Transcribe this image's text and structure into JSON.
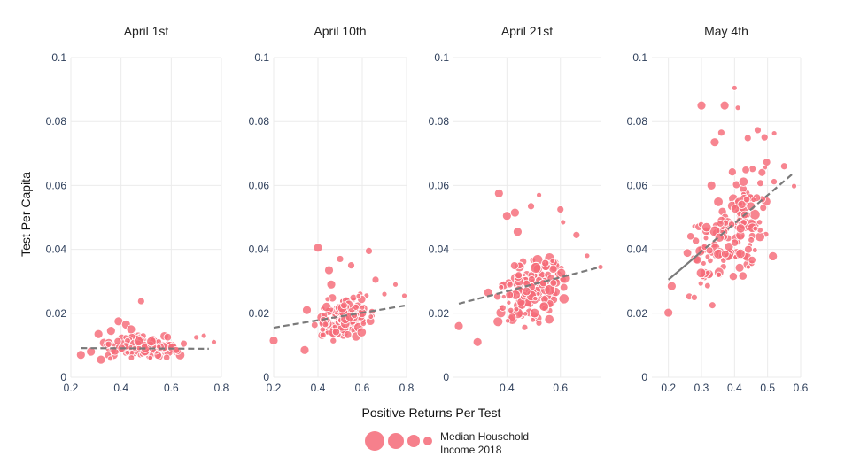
{
  "chart_data": {
    "type": "scatter",
    "y_axis_title": "Test Per Capita",
    "x_axis_title": "Positive Returns Per Test",
    "marker_color": "#f56a78",
    "trend_color": "#7a7a7a",
    "legend": {
      "label_line1": "Median Household",
      "label_line2": "Income 2018",
      "sizes": [
        11,
        9,
        7,
        5
      ]
    },
    "panels": [
      {
        "title": "April 1st",
        "xlim": [
          0.2,
          0.8
        ],
        "ylim": [
          0,
          0.1
        ],
        "xticks": [
          0.2,
          0.4,
          0.6,
          0.8
        ],
        "xtick_labels": [
          "0.2",
          "0.4",
          "0.6",
          "0.8"
        ],
        "yticks": [
          0,
          0.02,
          0.04,
          0.06,
          0.08,
          0.1
        ],
        "ytick_labels": [
          "0",
          "0.02",
          "0.04",
          "0.06",
          "0.08",
          "0.1"
        ],
        "trend": {
          "style": "dashed",
          "x": [
            0.24,
            0.75
          ],
          "y": [
            0.0091,
            0.0089
          ]
        },
        "cluster": {
          "n": 150,
          "seed": 11,
          "xr": [
            0.3,
            0.66
          ],
          "yr": [
            0.005,
            0.014
          ],
          "trend": true,
          "rmin": 2.5,
          "rmax": 5.5
        },
        "points": [
          [
            0.24,
            0.007,
            5
          ],
          [
            0.28,
            0.008,
            5
          ],
          [
            0.31,
            0.0135,
            5
          ],
          [
            0.32,
            0.0055,
            5
          ],
          [
            0.36,
            0.0145,
            5
          ],
          [
            0.39,
            0.0175,
            5
          ],
          [
            0.42,
            0.0165,
            5
          ],
          [
            0.44,
            0.015,
            5
          ],
          [
            0.48,
            0.0238,
            4
          ],
          [
            0.62,
            0.0085,
            4
          ],
          [
            0.65,
            0.0105,
            4
          ],
          [
            0.7,
            0.0125,
            3
          ],
          [
            0.73,
            0.013,
            3
          ],
          [
            0.77,
            0.011,
            3
          ]
        ]
      },
      {
        "title": "April 10th",
        "xlim": [
          0.2,
          0.8
        ],
        "ylim": [
          0,
          0.1
        ],
        "xticks": [
          0.2,
          0.4,
          0.6,
          0.8
        ],
        "xtick_labels": [
          "0.2",
          "0.4",
          "0.6",
          "0.8"
        ],
        "yticks": [
          0,
          0.02,
          0.04,
          0.06,
          0.08,
          0.1
        ],
        "ytick_labels": [
          "0",
          "0.02",
          "0.04",
          "0.06",
          "0.08",
          "0.1"
        ],
        "trend": {
          "style": "dashed",
          "x": [
            0.2,
            0.8
          ],
          "y": [
            0.0155,
            0.0225
          ]
        },
        "cluster": {
          "n": 150,
          "seed": 23,
          "xr": [
            0.36,
            0.68
          ],
          "yr": [
            0.01,
            0.027
          ],
          "trend": true,
          "rmin": 2.5,
          "rmax": 5.5
        },
        "points": [
          [
            0.2,
            0.0115,
            5
          ],
          [
            0.34,
            0.0085,
            5
          ],
          [
            0.35,
            0.021,
            5
          ],
          [
            0.4,
            0.0405,
            5
          ],
          [
            0.45,
            0.0335,
            5
          ],
          [
            0.46,
            0.029,
            5
          ],
          [
            0.5,
            0.037,
            4
          ],
          [
            0.55,
            0.035,
            4
          ],
          [
            0.63,
            0.0395,
            4
          ],
          [
            0.66,
            0.0305,
            4
          ],
          [
            0.7,
            0.026,
            3
          ],
          [
            0.75,
            0.029,
            3
          ],
          [
            0.79,
            0.0255,
            3
          ]
        ]
      },
      {
        "title": "April 21st",
        "xlim": [
          0.2,
          0.75
        ],
        "ylim": [
          0,
          0.1
        ],
        "xticks": [
          0.4,
          0.6
        ],
        "xtick_labels": [
          "0.4",
          "0.6"
        ],
        "yticks": [
          0,
          0.02,
          0.04,
          0.06,
          0.08,
          0.1
        ],
        "ytick_labels": [
          "0",
          "0.02",
          "0.04",
          "0.06",
          "0.08",
          "0.1"
        ],
        "trend": {
          "style": "dashed",
          "x": [
            0.22,
            0.75
          ],
          "y": [
            0.023,
            0.0345
          ]
        },
        "cluster": {
          "n": 150,
          "seed": 37,
          "xr": [
            0.33,
            0.66
          ],
          "yr": [
            0.014,
            0.04
          ],
          "trend": true,
          "rmin": 2.5,
          "rmax": 6
        },
        "points": [
          [
            0.22,
            0.016,
            5
          ],
          [
            0.29,
            0.011,
            5
          ],
          [
            0.33,
            0.0265,
            5
          ],
          [
            0.37,
            0.0575,
            5
          ],
          [
            0.4,
            0.0505,
            5
          ],
          [
            0.43,
            0.0515,
            5
          ],
          [
            0.44,
            0.0455,
            5
          ],
          [
            0.49,
            0.0535,
            4
          ],
          [
            0.52,
            0.057,
            3
          ],
          [
            0.6,
            0.0525,
            4
          ],
          [
            0.61,
            0.0485,
            3
          ],
          [
            0.66,
            0.0445,
            4
          ],
          [
            0.7,
            0.038,
            3
          ],
          [
            0.75,
            0.0345,
            3
          ]
        ]
      },
      {
        "title": "May 4th",
        "xlim": [
          0.15,
          0.6
        ],
        "ylim": [
          0,
          0.1
        ],
        "xticks": [
          0.2,
          0.3,
          0.4,
          0.5,
          0.6
        ],
        "xtick_labels": [
          "0.2",
          "0.3",
          "0.4",
          "0.5",
          "0.6"
        ],
        "yticks": [
          0,
          0.02,
          0.04,
          0.06,
          0.08,
          0.1
        ],
        "ytick_labels": [
          "0",
          "0.02",
          "0.04",
          "0.06",
          "0.08",
          "0.1"
        ],
        "trend": {
          "style": "mixed",
          "x": [
            0.2,
            0.58
          ],
          "y": [
            0.0305,
            0.064
          ],
          "break_x": 0.29
        },
        "cluster": {
          "n": 160,
          "seed": 53,
          "xr": [
            0.22,
            0.56
          ],
          "yr": [
            0.024,
            0.068
          ],
          "trend": true,
          "rmin": 2.5,
          "rmax": 6
        },
        "points": [
          [
            0.2,
            0.0202,
            5
          ],
          [
            0.21,
            0.0285,
            5
          ],
          [
            0.3,
            0.085,
            5
          ],
          [
            0.33,
            0.06,
            5
          ],
          [
            0.34,
            0.0735,
            5
          ],
          [
            0.36,
            0.0765,
            4
          ],
          [
            0.37,
            0.085,
            5
          ],
          [
            0.4,
            0.0905,
            3
          ],
          [
            0.41,
            0.0843,
            3
          ],
          [
            0.44,
            0.0748,
            4
          ],
          [
            0.47,
            0.0773,
            4
          ],
          [
            0.52,
            0.0763,
            3
          ],
          [
            0.55,
            0.066,
            4
          ],
          [
            0.58,
            0.0598,
            3
          ]
        ]
      }
    ]
  }
}
